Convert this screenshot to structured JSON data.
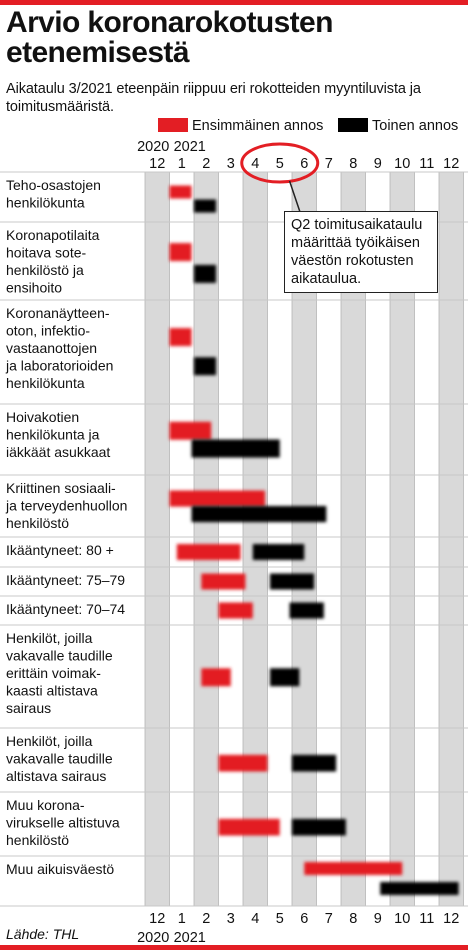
{
  "title_line1": "Arvio koronarokotusten",
  "title_line2": "etenemisestä",
  "subtitle": "Aikataulu 3/2021 eteenpäin riippuu eri rokotteiden myyntiluvista ja toimitusmääristä.",
  "source": "Lähde: THL",
  "colors": {
    "first": "#e31e24",
    "second": "#000000",
    "accent": "#e31e24",
    "shade": "#d9d9d9"
  },
  "chart_data": {
    "type": "gantt",
    "title": "Arvio koronarokotusten etenemisestä",
    "subtitle": "Aikataulu 3/2021 eteenpäin riippuu eri rokotteiden myyntiluvista ja toimitusmääristä.",
    "legend": [
      {
        "name": "Ensimmäinen annos",
        "color": "#e31e24"
      },
      {
        "name": "Toinen annos",
        "color": "#000000"
      }
    ],
    "legend_position": "top-right",
    "x_unit": "month",
    "month_ticks": [
      "12",
      "1",
      "2",
      "3",
      "4",
      "5",
      "6",
      "7",
      "8",
      "9",
      "10",
      "11",
      "12"
    ],
    "year_ticks": [
      {
        "label": "2020",
        "month_index": 0
      },
      {
        "label": "2021",
        "month_index": 1
      }
    ],
    "annotation": {
      "text": "Q2 toimitusaikataulu määrittää työikäisen väestön rokotusten aikataulua.",
      "highlight_months": [
        "4",
        "5",
        "6"
      ]
    },
    "groups": [
      {
        "label": "Teho-osastojen henkilökunta",
        "first": [
          1.0,
          1.9
        ],
        "second": [
          2.0,
          2.9
        ]
      },
      {
        "label": "Koronapotilaita hoitava sote-henkilöstö ja ensihoito",
        "first": [
          1.0,
          1.9
        ],
        "second": [
          2.0,
          2.9
        ]
      },
      {
        "label": "Koronanäytteen-oton, infektio-vastaanottojen ja laboratorioiden henkilökunta",
        "first": [
          1.0,
          1.9
        ],
        "second": [
          2.0,
          2.9
        ]
      },
      {
        "label": "Hoivakotien henkilökunta ja iäkkäät asukkaat",
        "first": [
          1.0,
          2.7
        ],
        "second": [
          1.9,
          5.5
        ]
      },
      {
        "label": "Kriittinen sosiaali- ja terveydenhuollon henkilöstö",
        "first": [
          1.0,
          4.9
        ],
        "second": [
          1.9,
          7.4
        ]
      },
      {
        "label": "Ikääntyneet: 80 +",
        "first": [
          1.3,
          3.9
        ],
        "second": [
          4.4,
          6.5
        ]
      },
      {
        "label": "Ikääntyneet: 75–79",
        "first": [
          2.3,
          4.1
        ],
        "second": [
          5.1,
          6.9
        ]
      },
      {
        "label": "Ikääntyneet: 70–74",
        "first": [
          3.0,
          4.4
        ],
        "second": [
          5.9,
          7.3
        ]
      },
      {
        "label": "Henkilöt, joilla vakavalle taudille erittäin voimak-kaasti altistava sairaus",
        "first": [
          2.3,
          3.5
        ],
        "second": [
          5.1,
          6.3
        ]
      },
      {
        "label": "Henkilöt, joilla vakavalle taudille altistava sairaus",
        "first": [
          3.0,
          5.0
        ],
        "second": [
          6.0,
          7.8
        ]
      },
      {
        "label": "Muu korona-virukselle altistuva henkilöstö",
        "first": [
          3.0,
          5.5
        ],
        "second": [
          6.0,
          8.2
        ]
      },
      {
        "label": "Muu aikuisväestö",
        "first": [
          6.5,
          10.5
        ],
        "second": [
          9.6,
          12.8
        ]
      }
    ]
  },
  "label_lines": [
    [
      "Teho-osastojen",
      "henkilökunta"
    ],
    [
      "Koronapotilaita",
      "hoitava sote-",
      "henkilöstö ja",
      "ensihoito"
    ],
    [
      "Koronanäytteen-",
      "oton, infektio-",
      "vastaanottojen",
      "ja laboratorioiden",
      "henkilökunta"
    ],
    [
      "Hoivakotien",
      "henkilökunta ja",
      "iäkkäät asukkaat"
    ],
    [
      "Kriittinen sosiaali-",
      "ja terveydenhuollon",
      "henkilöstö"
    ],
    [
      "Ikääntyneet: 80 +"
    ],
    [
      "Ikääntyneet: 75–79"
    ],
    [
      "Ikääntyneet: 70–74"
    ],
    [
      "Henkilöt, joilla",
      "vakavalle taudille",
      "erittäin voimak-",
      "kaasti altistava",
      "sairaus"
    ],
    [
      "Henkilöt, joilla",
      "vakavalle taudille",
      "altistava sairaus"
    ],
    [
      "Muu korona-",
      "virukselle altistuva",
      "henkilöstö"
    ],
    [
      "Muu aikuisväestö"
    ]
  ],
  "legend_labels": {
    "first": "Ensimmäinen annos",
    "second": "Toinen annos"
  },
  "note_lines": [
    "Q2 toimitusaikataulu",
    "määrittää työikäisen",
    "väestön rokotusten",
    "aikataulua."
  ]
}
